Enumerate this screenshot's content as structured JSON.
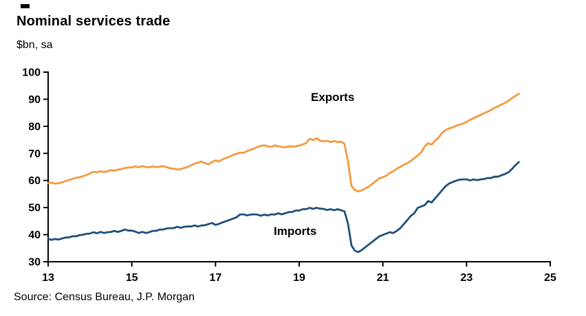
{
  "title": "Nominal services trade",
  "subtitle": "$bn, sa",
  "source": "Source: Census Bureau, J.P. Morgan",
  "colors": {
    "exports": "#F5993E",
    "imports": "#1F4E79",
    "axis": "#000000"
  },
  "chart_data": {
    "type": "line",
    "title": "Nominal services trade",
    "ylabel": "$bn, sa",
    "xlabel": "",
    "xlim": [
      13,
      25
    ],
    "ylim": [
      30,
      100
    ],
    "xticks": [
      13,
      15,
      17,
      19,
      21,
      23,
      25
    ],
    "yticks": [
      30,
      40,
      50,
      60,
      70,
      80,
      90,
      100
    ],
    "grid": false,
    "legend_position": "inline-labels",
    "x_start_year": 2013,
    "x_frequency": "monthly",
    "series": [
      {
        "name": "Exports",
        "color": "#F5993E",
        "values": [
          59.0,
          59.2,
          58.8,
          59.0,
          59.3,
          59.8,
          60.2,
          60.6,
          61.0,
          61.2,
          61.6,
          62.0,
          62.6,
          63.2,
          63.0,
          63.4,
          63.1,
          63.4,
          63.8,
          63.6,
          64.0,
          64.2,
          64.6,
          64.8,
          64.8,
          65.2,
          64.9,
          65.3,
          65.0,
          64.8,
          65.2,
          64.9,
          65.1,
          65.3,
          64.9,
          64.5,
          64.4,
          64.0,
          64.2,
          64.6,
          65.0,
          65.6,
          66.2,
          66.6,
          67.0,
          66.4,
          66.0,
          66.8,
          67.4,
          67.0,
          67.8,
          68.3,
          68.8,
          69.4,
          69.8,
          70.3,
          70.2,
          70.8,
          71.3,
          71.8,
          72.3,
          72.8,
          73.0,
          72.6,
          72.4,
          73.0,
          72.6,
          72.4,
          72.2,
          72.6,
          72.5,
          72.6,
          72.9,
          73.3,
          73.8,
          75.4,
          74.9,
          75.6,
          74.7,
          74.5,
          74.6,
          74.2,
          74.5,
          74.2,
          74.3,
          73.5,
          67.0,
          58.0,
          56.4,
          56.0,
          56.4,
          57.0,
          57.8,
          58.8,
          59.8,
          60.8,
          61.2,
          61.8,
          62.8,
          63.4,
          64.4,
          65.0,
          65.8,
          66.4,
          67.2,
          68.2,
          69.2,
          70.4,
          72.6,
          73.8,
          73.2,
          74.8,
          75.8,
          77.6,
          78.6,
          79.2,
          79.6,
          80.2,
          80.6,
          81.0,
          81.6,
          82.4,
          83.0,
          83.6,
          84.2,
          84.8,
          85.4,
          86.0,
          86.8,
          87.4,
          88.0,
          88.6,
          89.4,
          90.4,
          91.2,
          92.0
        ]
      },
      {
        "name": "Imports",
        "color": "#1F4E79",
        "values": [
          38.4,
          38.1,
          38.4,
          38.2,
          38.6,
          38.9,
          39.0,
          39.4,
          39.4,
          39.8,
          40.0,
          40.3,
          40.4,
          40.9,
          40.5,
          41.0,
          40.6,
          40.9,
          41.0,
          41.4,
          41.0,
          41.4,
          41.9,
          41.5,
          41.5,
          41.1,
          40.6,
          41.0,
          40.6,
          40.9,
          41.4,
          41.4,
          41.9,
          41.9,
          42.3,
          42.4,
          42.4,
          42.9,
          42.5,
          42.9,
          43.0,
          43.0,
          43.4,
          43.0,
          43.4,
          43.5,
          43.9,
          44.3,
          43.6,
          44.0,
          44.5,
          45.0,
          45.4,
          45.9,
          46.4,
          47.4,
          47.5,
          47.1,
          47.4,
          47.5,
          47.4,
          47.0,
          47.4,
          47.1,
          47.5,
          47.4,
          47.9,
          47.5,
          47.9,
          48.3,
          48.4,
          48.9,
          48.9,
          49.4,
          49.4,
          49.9,
          49.5,
          49.9,
          49.6,
          49.5,
          49.1,
          49.4,
          49.0,
          49.4,
          49.0,
          48.6,
          44.0,
          36.0,
          34.0,
          33.6,
          34.4,
          35.4,
          36.4,
          37.4,
          38.4,
          39.4,
          39.9,
          40.4,
          40.9,
          40.6,
          41.4,
          42.4,
          43.9,
          45.4,
          46.9,
          47.9,
          49.9,
          50.4,
          50.9,
          52.4,
          51.9,
          53.4,
          54.9,
          56.4,
          57.9,
          58.9,
          59.4,
          59.9,
          60.3,
          60.4,
          60.4,
          60.0,
          60.4,
          60.1,
          60.4,
          60.5,
          60.9,
          60.9,
          61.4,
          61.4,
          61.9,
          62.4,
          63.0,
          64.2,
          65.6,
          66.8
        ]
      }
    ]
  }
}
